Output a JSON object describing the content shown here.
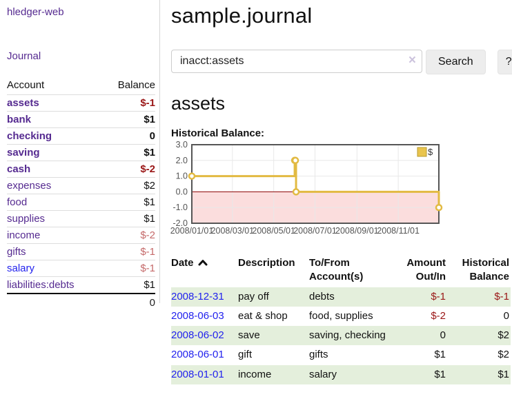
{
  "sidebar": {
    "app_title": "hledger-web",
    "journal_label": "Journal",
    "accounts": {
      "headers": {
        "account": "Account",
        "balance": "Balance"
      },
      "rows": [
        {
          "label": "assets",
          "balance": "$-1"
        },
        {
          "label": "bank",
          "balance": "$1"
        },
        {
          "label": "checking",
          "balance": "0"
        },
        {
          "label": "saving",
          "balance": "$1"
        },
        {
          "label": "cash",
          "balance": "$-2"
        },
        {
          "label": "expenses",
          "balance": "$2"
        },
        {
          "label": "food",
          "balance": "$1"
        },
        {
          "label": "supplies",
          "balance": "$1"
        },
        {
          "label": "income",
          "balance": "$-2"
        },
        {
          "label": "gifts",
          "balance": "$-1"
        },
        {
          "label": "salary",
          "balance": "$-1"
        },
        {
          "label": "liabilities:debts",
          "balance": "$1"
        }
      ],
      "total": "0"
    }
  },
  "main": {
    "title": "sample.journal",
    "search": {
      "value": "inacct:assets",
      "clear_icon": "×",
      "button_label": "Search",
      "help_label": "?"
    },
    "account_heading": "assets",
    "chart_heading": "Historical Balance:"
  },
  "chart_data": {
    "type": "line",
    "title": "Historical Balance:",
    "series": [
      {
        "name": "$",
        "step": true,
        "points": [
          [
            "2008-01-01",
            1
          ],
          [
            "2008-06-01",
            2
          ],
          [
            "2008-06-02",
            2
          ],
          [
            "2008-06-03",
            0
          ],
          [
            "2008-12-31",
            -1
          ]
        ]
      }
    ],
    "x_range": [
      "2008-01-01",
      "2008-12-31"
    ],
    "x_ticks": [
      "2008/01/01",
      "2008/03/01",
      "2008/05/01",
      "2008/07/01",
      "2008/09/01",
      "2008/11/01"
    ],
    "y_ticks": [
      "3.0",
      "2.0",
      "1.0",
      "0.0",
      "-1.0",
      "-2.0"
    ],
    "ylim": [
      -2,
      3
    ],
    "grid": true,
    "legend": {
      "position": "top-right",
      "label": "$"
    },
    "colors": {
      "line": "#e2ba42",
      "marker_fill": "#ffffff",
      "legend_fill": "#e9c44d",
      "negative_region": "#fbdddd",
      "zero_line": "#8b0000",
      "grid": "#e8e8e8",
      "border": "#555555",
      "axis_text": "#545454"
    }
  },
  "register": {
    "sort_icon": "chevron-up",
    "headers": {
      "date": "Date",
      "description": "Description",
      "accounts": "To/From Account(s)",
      "amount": "Amount Out/In",
      "balance": "Historical Balance"
    },
    "rows": [
      {
        "date": "2008-12-31",
        "description": "pay off",
        "accounts": "debts",
        "amount": "$-1",
        "balance": "$-1"
      },
      {
        "date": "2008-06-03",
        "description": "eat & shop",
        "accounts": "food, supplies",
        "amount": "$-2",
        "balance": "0"
      },
      {
        "date": "2008-06-02",
        "description": "save",
        "accounts": "saving, checking",
        "amount": "0",
        "balance": "$2"
      },
      {
        "date": "2008-06-01",
        "description": "gift",
        "accounts": "gifts",
        "amount": "$1",
        "balance": "$2"
      },
      {
        "date": "2008-01-01",
        "description": "income",
        "accounts": "salary",
        "amount": "$1",
        "balance": "$1"
      }
    ]
  }
}
